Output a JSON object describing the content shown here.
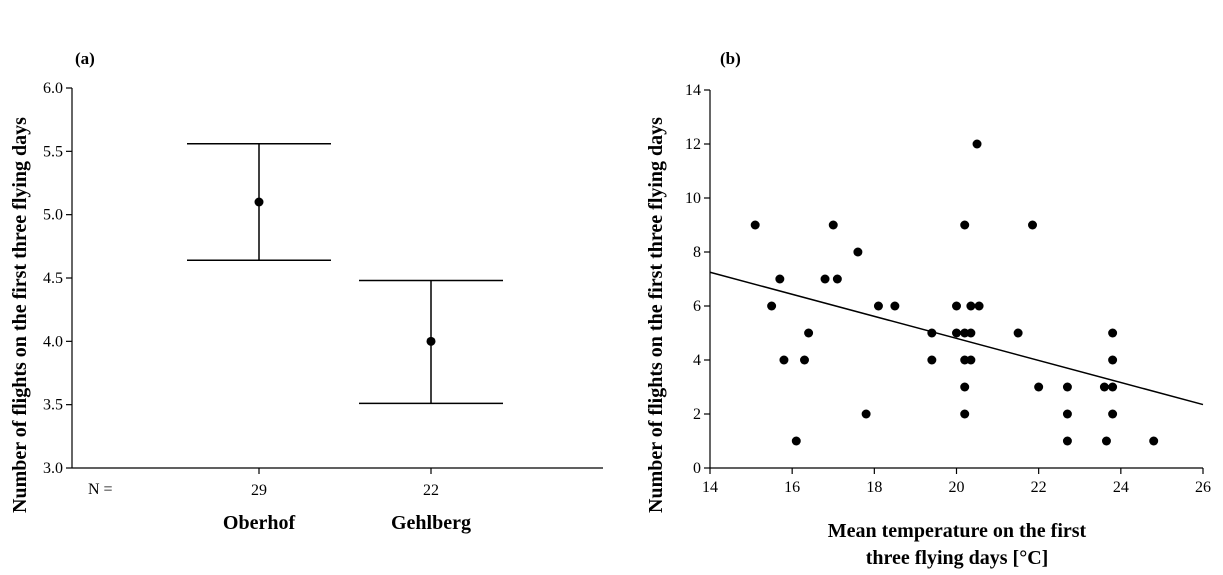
{
  "chart_data": [
    {
      "panel_label": "(a)",
      "type": "errorbar",
      "ylabel": "Number of flights on the first three flying days",
      "ylim": [
        3.0,
        6.0
      ],
      "yticks": [
        "3.0",
        "3.5",
        "4.0",
        "4.5",
        "5.0",
        "5.5",
        "6.0"
      ],
      "n_prefix": "N =",
      "categories": [
        "Oberhof",
        "Gehlberg"
      ],
      "n_values": [
        "29",
        "22"
      ],
      "mean": [
        5.1,
        4.0
      ],
      "upper": [
        5.56,
        4.48
      ],
      "lower": [
        4.64,
        3.51
      ]
    },
    {
      "panel_label": "(b)",
      "type": "scatter",
      "xlabel_line1": "Mean temperature on the first",
      "xlabel_line2": "three flying days [°C]",
      "ylabel": "Number of flights on the first three flying days",
      "xlim": [
        14,
        26
      ],
      "ylim": [
        0,
        14
      ],
      "xticks": [
        "14",
        "16",
        "18",
        "20",
        "22",
        "24",
        "26"
      ],
      "yticks": [
        "0",
        "2",
        "4",
        "6",
        "8",
        "10",
        "12",
        "14"
      ],
      "points": [
        [
          15.1,
          9
        ],
        [
          15.5,
          6
        ],
        [
          15.7,
          7
        ],
        [
          15.8,
          4
        ],
        [
          16.1,
          1
        ],
        [
          16.3,
          4
        ],
        [
          16.4,
          5
        ],
        [
          16.8,
          7
        ],
        [
          17.0,
          9
        ],
        [
          17.1,
          7
        ],
        [
          17.6,
          8
        ],
        [
          17.8,
          2
        ],
        [
          18.1,
          6
        ],
        [
          18.5,
          6
        ],
        [
          19.4,
          5
        ],
        [
          19.4,
          4
        ],
        [
          20.0,
          6
        ],
        [
          20.0,
          5
        ],
        [
          20.2,
          9
        ],
        [
          20.2,
          5
        ],
        [
          20.2,
          4
        ],
        [
          20.2,
          3
        ],
        [
          20.2,
          2
        ],
        [
          20.35,
          6
        ],
        [
          20.35,
          5
        ],
        [
          20.35,
          4
        ],
        [
          20.5,
          12
        ],
        [
          20.55,
          6
        ],
        [
          21.5,
          5
        ],
        [
          21.85,
          9
        ],
        [
          22.0,
          3
        ],
        [
          22.7,
          3
        ],
        [
          22.7,
          2
        ],
        [
          22.7,
          1
        ],
        [
          23.6,
          3
        ],
        [
          23.65,
          1
        ],
        [
          23.8,
          5
        ],
        [
          23.8,
          4
        ],
        [
          23.8,
          3
        ],
        [
          23.8,
          2
        ],
        [
          24.8,
          1
        ]
      ],
      "trendline": [
        [
          14,
          7.25
        ],
        [
          26,
          2.35
        ]
      ]
    }
  ]
}
